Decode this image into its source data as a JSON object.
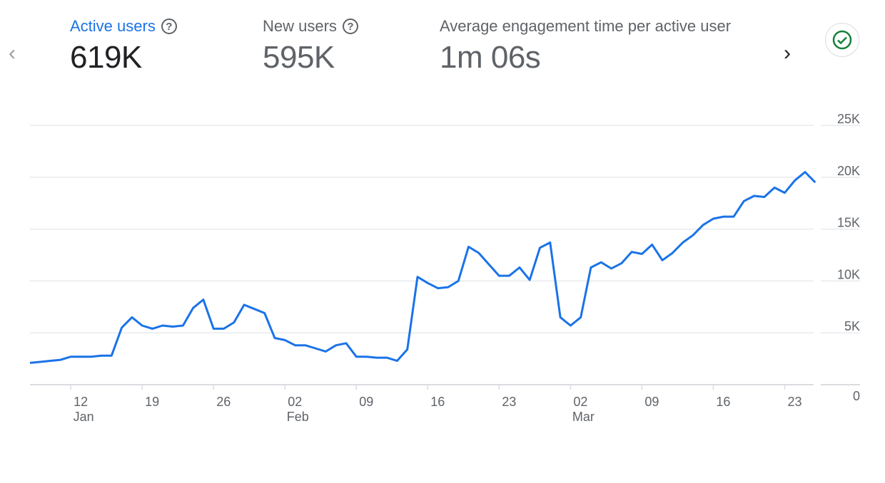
{
  "nav": {
    "prev_icon": "chevron-left-icon",
    "next_icon": "chevron-right-icon"
  },
  "metrics": [
    {
      "title": "Active users",
      "value": "619K",
      "selected": true
    },
    {
      "title": "New users",
      "value": "595K"
    },
    {
      "title": "Average engagement time per active user",
      "value": "1m 06s"
    }
  ],
  "status_icon": "check-circle-icon",
  "colors": {
    "accent": "#1a73e8",
    "line": "#1a73e8",
    "check": "#188038"
  },
  "chart_data": {
    "type": "line",
    "series": [
      {
        "name": "Active users",
        "start_date": "Jan 08",
        "values": [
          2.1,
          2.2,
          2.3,
          2.4,
          2.7,
          2.7,
          2.7,
          2.8,
          2.8,
          5.5,
          6.5,
          5.7,
          5.4,
          5.7,
          5.6,
          5.7,
          7.4,
          8.2,
          5.4,
          5.4,
          6.0,
          7.7,
          7.3,
          6.9,
          4.5,
          4.3,
          3.8,
          3.8,
          3.5,
          3.2,
          3.8,
          4.0,
          2.7,
          2.7,
          2.6,
          2.6,
          2.3,
          3.4,
          10.4,
          9.8,
          9.3,
          9.4,
          10.0,
          13.3,
          12.7,
          11.6,
          10.5,
          10.5,
          11.3,
          10.1,
          13.2,
          13.7,
          6.5,
          5.7,
          6.5,
          11.3,
          11.8,
          11.2,
          11.7,
          12.8,
          12.6,
          13.5,
          12.0,
          12.7,
          13.7,
          14.4,
          15.4,
          16.0,
          16.2,
          16.2,
          17.7,
          18.2,
          18.1,
          19.0,
          18.5,
          19.7,
          20.5,
          19.5
        ]
      }
    ],
    "value_unit": "K",
    "x_ticks": [
      {
        "day": "12",
        "month": "Jan",
        "index": 4
      },
      {
        "day": "19",
        "index": 11
      },
      {
        "day": "26",
        "index": 18
      },
      {
        "day": "02",
        "month": "Feb",
        "index": 25
      },
      {
        "day": "09",
        "index": 32
      },
      {
        "day": "16",
        "index": 39
      },
      {
        "day": "23",
        "index": 46
      },
      {
        "day": "02",
        "month": "Mar",
        "index": 53
      },
      {
        "day": "09",
        "index": 60
      },
      {
        "day": "16",
        "index": 67
      },
      {
        "day": "23",
        "index": 74
      }
    ],
    "y_ticks": [
      "0",
      "5K",
      "10K",
      "15K",
      "20K",
      "25K"
    ],
    "ylim": [
      0,
      25
    ],
    "grid": true,
    "y_axis_side": "right"
  }
}
